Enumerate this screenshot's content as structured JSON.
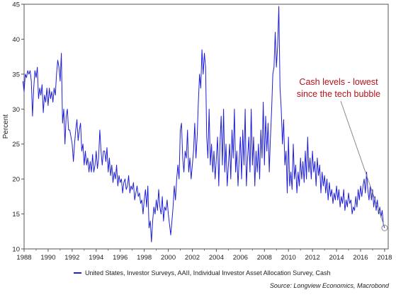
{
  "chart_data": {
    "type": "line",
    "ylabel": "Percent",
    "xlim": [
      1988,
      2018.3
    ],
    "ylim": [
      10,
      45
    ],
    "x_ticks": [
      1988,
      1990,
      1992,
      1994,
      1996,
      1998,
      2000,
      2002,
      2004,
      2006,
      2008,
      2010,
      2012,
      2014,
      2016,
      2018
    ],
    "y_ticks": [
      10,
      15,
      20,
      25,
      30,
      35,
      40,
      45
    ],
    "grid": false,
    "legend_position": "bottom",
    "series": [
      {
        "name": "United States, Investor Surveys, AAII, Individual Investor Asset Allocation Survey, Cash",
        "color": "#1f1fd6",
        "points": [
          [
            1987.9,
            34.0
          ],
          [
            1988.0,
            32.5
          ],
          [
            1988.1,
            35.0
          ],
          [
            1988.2,
            34.5
          ],
          [
            1988.3,
            35.5
          ],
          [
            1988.4,
            35.0
          ],
          [
            1988.5,
            35.5
          ],
          [
            1988.6,
            34.0
          ],
          [
            1988.7,
            29.0
          ],
          [
            1988.8,
            33.0
          ],
          [
            1988.9,
            35.5
          ],
          [
            1989.0,
            34.5
          ],
          [
            1989.1,
            36.0
          ],
          [
            1989.2,
            31.5
          ],
          [
            1989.3,
            33.0
          ],
          [
            1989.4,
            32.0
          ],
          [
            1989.5,
            33.5
          ],
          [
            1989.6,
            29.5
          ],
          [
            1989.7,
            32.0
          ],
          [
            1989.8,
            31.0
          ],
          [
            1989.9,
            33.0
          ],
          [
            1990.0,
            30.5
          ],
          [
            1990.1,
            33.0
          ],
          [
            1990.2,
            31.5
          ],
          [
            1990.3,
            32.5
          ],
          [
            1990.4,
            31.0
          ],
          [
            1990.5,
            33.0
          ],
          [
            1990.6,
            32.0
          ],
          [
            1990.7,
            35.0
          ],
          [
            1990.8,
            37.0
          ],
          [
            1990.9,
            36.0
          ],
          [
            1991.0,
            34.0
          ],
          [
            1991.1,
            38.0
          ],
          [
            1991.2,
            28.0
          ],
          [
            1991.3,
            30.0
          ],
          [
            1991.4,
            25.0
          ],
          [
            1991.5,
            29.0
          ],
          [
            1991.6,
            30.0
          ],
          [
            1991.7,
            27.0
          ],
          [
            1991.8,
            27.0
          ],
          [
            1991.9,
            26.0
          ],
          [
            1992.0,
            25.0
          ],
          [
            1992.1,
            22.5
          ],
          [
            1992.2,
            25.0
          ],
          [
            1992.3,
            27.0
          ],
          [
            1992.4,
            28.5
          ],
          [
            1992.5,
            25.5
          ],
          [
            1992.6,
            27.0
          ],
          [
            1992.7,
            28.0
          ],
          [
            1992.8,
            24.0
          ],
          [
            1992.9,
            25.0
          ],
          [
            1993.0,
            22.0
          ],
          [
            1993.1,
            24.0
          ],
          [
            1993.2,
            22.0
          ],
          [
            1993.3,
            23.0
          ],
          [
            1993.4,
            21.0
          ],
          [
            1993.5,
            22.5
          ],
          [
            1993.6,
            21.0
          ],
          [
            1993.7,
            23.5
          ],
          [
            1993.8,
            21.0
          ],
          [
            1993.9,
            22.0
          ],
          [
            1994.0,
            24.0
          ],
          [
            1994.1,
            21.5
          ],
          [
            1994.2,
            23.0
          ],
          [
            1994.3,
            27.0
          ],
          [
            1994.4,
            24.0
          ],
          [
            1994.5,
            22.0
          ],
          [
            1994.6,
            24.0
          ],
          [
            1994.7,
            24.0
          ],
          [
            1994.8,
            22.5
          ],
          [
            1994.9,
            24.5
          ],
          [
            1995.0,
            21.0
          ],
          [
            1995.1,
            23.0
          ],
          [
            1995.2,
            20.5
          ],
          [
            1995.3,
            22.0
          ],
          [
            1995.4,
            19.5
          ],
          [
            1995.5,
            21.0
          ],
          [
            1995.6,
            20.0
          ],
          [
            1995.7,
            22.0
          ],
          [
            1995.8,
            19.0
          ],
          [
            1995.9,
            20.5
          ],
          [
            1996.0,
            19.5
          ],
          [
            1996.1,
            20.0
          ],
          [
            1996.2,
            18.0
          ],
          [
            1996.3,
            19.5
          ],
          [
            1996.4,
            20.0
          ],
          [
            1996.5,
            18.5
          ],
          [
            1996.6,
            19.0
          ],
          [
            1996.7,
            20.5
          ],
          [
            1996.8,
            18.0
          ],
          [
            1996.9,
            19.0
          ],
          [
            1997.0,
            18.5
          ],
          [
            1997.1,
            19.5
          ],
          [
            1997.2,
            17.0
          ],
          [
            1997.3,
            18.0
          ],
          [
            1997.4,
            19.0
          ],
          [
            1997.5,
            17.5
          ],
          [
            1997.6,
            18.0
          ],
          [
            1997.7,
            16.5
          ],
          [
            1997.8,
            17.0
          ],
          [
            1997.9,
            15.0
          ],
          [
            1998.0,
            17.0
          ],
          [
            1998.1,
            18.5
          ],
          [
            1998.2,
            16.0
          ],
          [
            1998.3,
            19.0
          ],
          [
            1998.4,
            13.0
          ],
          [
            1998.5,
            14.0
          ],
          [
            1998.6,
            11.0
          ],
          [
            1998.7,
            14.0
          ],
          [
            1998.8,
            16.0
          ],
          [
            1998.9,
            15.0
          ],
          [
            1999.0,
            17.0
          ],
          [
            1999.1,
            15.5
          ],
          [
            1999.2,
            18.5
          ],
          [
            1999.3,
            16.0
          ],
          [
            1999.4,
            15.0
          ],
          [
            1999.5,
            17.5
          ],
          [
            1999.6,
            14.0
          ],
          [
            1999.7,
            16.0
          ],
          [
            1999.8,
            15.5
          ],
          [
            1999.9,
            17.0
          ],
          [
            2000.0,
            15.0
          ],
          [
            2000.1,
            13.5
          ],
          [
            2000.2,
            12.0
          ],
          [
            2000.3,
            14.0
          ],
          [
            2000.4,
            16.0
          ],
          [
            2000.5,
            19.0
          ],
          [
            2000.6,
            17.0
          ],
          [
            2000.7,
            20.0
          ],
          [
            2000.8,
            22.0
          ],
          [
            2000.9,
            20.0
          ],
          [
            2001.0,
            27.0
          ],
          [
            2001.1,
            28.0
          ],
          [
            2001.2,
            23.0
          ],
          [
            2001.3,
            21.0
          ],
          [
            2001.4,
            24.0
          ],
          [
            2001.5,
            23.0
          ],
          [
            2001.6,
            27.0
          ],
          [
            2001.7,
            21.0
          ],
          [
            2001.8,
            23.0
          ],
          [
            2001.9,
            20.0
          ],
          [
            2002.0,
            22.0
          ],
          [
            2002.1,
            24.0
          ],
          [
            2002.2,
            28.0
          ],
          [
            2002.3,
            23.0
          ],
          [
            2002.4,
            26.0
          ],
          [
            2002.5,
            31.0
          ],
          [
            2002.6,
            35.0
          ],
          [
            2002.7,
            33.0
          ],
          [
            2002.8,
            38.5
          ],
          [
            2002.9,
            35.0
          ],
          [
            2003.0,
            38.0
          ],
          [
            2003.1,
            36.0
          ],
          [
            2003.2,
            26.0
          ],
          [
            2003.3,
            23.0
          ],
          [
            2003.4,
            30.0
          ],
          [
            2003.5,
            22.0
          ],
          [
            2003.6,
            25.0
          ],
          [
            2003.7,
            21.0
          ],
          [
            2003.8,
            24.0
          ],
          [
            2003.9,
            20.0
          ],
          [
            2004.0,
            23.0
          ],
          [
            2004.1,
            26.0
          ],
          [
            2004.2,
            19.0
          ],
          [
            2004.3,
            25.0
          ],
          [
            2004.4,
            29.0
          ],
          [
            2004.5,
            22.0
          ],
          [
            2004.6,
            30.0
          ],
          [
            2004.7,
            21.0
          ],
          [
            2004.8,
            25.0
          ],
          [
            2004.9,
            19.0
          ],
          [
            2005.0,
            22.0
          ],
          [
            2005.1,
            25.0
          ],
          [
            2005.2,
            20.0
          ],
          [
            2005.3,
            27.0
          ],
          [
            2005.4,
            23.0
          ],
          [
            2005.5,
            30.0
          ],
          [
            2005.6,
            21.0
          ],
          [
            2005.7,
            24.0
          ],
          [
            2005.8,
            19.0
          ],
          [
            2005.9,
            23.0
          ],
          [
            2006.0,
            26.0
          ],
          [
            2006.1,
            20.0
          ],
          [
            2006.2,
            27.0
          ],
          [
            2006.3,
            22.0
          ],
          [
            2006.4,
            30.0
          ],
          [
            2006.5,
            19.0
          ],
          [
            2006.6,
            23.0
          ],
          [
            2006.7,
            26.0
          ],
          [
            2006.8,
            21.0
          ],
          [
            2006.9,
            30.0
          ],
          [
            2007.0,
            22.0
          ],
          [
            2007.1,
            26.0
          ],
          [
            2007.2,
            19.0
          ],
          [
            2007.3,
            24.0
          ],
          [
            2007.4,
            21.0
          ],
          [
            2007.5,
            25.0
          ],
          [
            2007.6,
            20.0
          ],
          [
            2007.7,
            27.0
          ],
          [
            2007.8,
            23.0
          ],
          [
            2007.9,
            31.0
          ],
          [
            2008.0,
            22.0
          ],
          [
            2008.1,
            29.0
          ],
          [
            2008.2,
            24.0
          ],
          [
            2008.3,
            28.0
          ],
          [
            2008.4,
            21.0
          ],
          [
            2008.5,
            26.0
          ],
          [
            2008.6,
            30.0
          ],
          [
            2008.7,
            35.0
          ],
          [
            2008.8,
            36.0
          ],
          [
            2008.9,
            41.0
          ],
          [
            2009.0,
            36.0
          ],
          [
            2009.1,
            39.0
          ],
          [
            2009.2,
            44.7
          ],
          [
            2009.3,
            33.0
          ],
          [
            2009.4,
            30.0
          ],
          [
            2009.5,
            25.0
          ],
          [
            2009.6,
            28.5
          ],
          [
            2009.7,
            22.0
          ],
          [
            2009.8,
            24.0
          ],
          [
            2009.9,
            18.0
          ],
          [
            2010.0,
            26.0
          ],
          [
            2010.1,
            19.0
          ],
          [
            2010.2,
            21.0
          ],
          [
            2010.3,
            18.5
          ],
          [
            2010.4,
            25.0
          ],
          [
            2010.5,
            20.0
          ],
          [
            2010.6,
            22.0
          ],
          [
            2010.7,
            18.0
          ],
          [
            2010.8,
            21.0
          ],
          [
            2010.9,
            19.0
          ],
          [
            2011.0,
            23.0
          ],
          [
            2011.1,
            20.0
          ],
          [
            2011.2,
            22.5
          ],
          [
            2011.3,
            19.5
          ],
          [
            2011.4,
            24.0
          ],
          [
            2011.5,
            20.0
          ],
          [
            2011.6,
            26.0
          ],
          [
            2011.7,
            21.0
          ],
          [
            2011.8,
            23.0
          ],
          [
            2011.9,
            20.0
          ],
          [
            2012.0,
            24.0
          ],
          [
            2012.1,
            21.0
          ],
          [
            2012.2,
            22.5
          ],
          [
            2012.3,
            19.0
          ],
          [
            2012.4,
            23.0
          ],
          [
            2012.5,
            20.5
          ],
          [
            2012.6,
            22.0
          ],
          [
            2012.7,
            18.0
          ],
          [
            2012.8,
            21.0
          ],
          [
            2012.9,
            19.0
          ],
          [
            2013.0,
            20.5
          ],
          [
            2013.1,
            18.0
          ],
          [
            2013.2,
            20.0
          ],
          [
            2013.3,
            17.0
          ],
          [
            2013.4,
            19.5
          ],
          [
            2013.5,
            17.5
          ],
          [
            2013.6,
            18.5
          ],
          [
            2013.7,
            16.5
          ],
          [
            2013.8,
            18.0
          ],
          [
            2013.9,
            17.0
          ],
          [
            2014.0,
            19.0
          ],
          [
            2014.1,
            17.0
          ],
          [
            2014.2,
            18.5
          ],
          [
            2014.3,
            16.0
          ],
          [
            2014.4,
            17.5
          ],
          [
            2014.5,
            16.5
          ],
          [
            2014.6,
            18.5
          ],
          [
            2014.7,
            15.5
          ],
          [
            2014.8,
            17.0
          ],
          [
            2014.9,
            16.0
          ],
          [
            2015.0,
            18.0
          ],
          [
            2015.1,
            16.5
          ],
          [
            2015.2,
            17.0
          ],
          [
            2015.3,
            15.0
          ],
          [
            2015.4,
            16.0
          ],
          [
            2015.5,
            15.5
          ],
          [
            2015.6,
            17.5
          ],
          [
            2015.7,
            16.0
          ],
          [
            2015.8,
            18.5
          ],
          [
            2015.9,
            17.0
          ],
          [
            2016.0,
            19.0
          ],
          [
            2016.1,
            17.5
          ],
          [
            2016.2,
            19.0
          ],
          [
            2016.3,
            20.0
          ],
          [
            2016.4,
            18.0
          ],
          [
            2016.5,
            21.0
          ],
          [
            2016.6,
            18.5
          ],
          [
            2016.7,
            17.0
          ],
          [
            2016.8,
            19.0
          ],
          [
            2016.9,
            17.0
          ],
          [
            2017.0,
            18.5
          ],
          [
            2017.1,
            16.0
          ],
          [
            2017.2,
            17.5
          ],
          [
            2017.3,
            15.5
          ],
          [
            2017.4,
            17.0
          ],
          [
            2017.5,
            15.0
          ],
          [
            2017.6,
            16.0
          ],
          [
            2017.7,
            14.5
          ],
          [
            2017.8,
            15.5
          ],
          [
            2017.9,
            13.5
          ],
          [
            2018.0,
            13.0
          ]
        ]
      }
    ],
    "annotation": {
      "lines": [
        "Cash levels - lowest",
        "since the tech bubble"
      ],
      "target": [
        2018.0,
        13.0
      ],
      "color": "#b5121b"
    },
    "source": "Source: Longview Economics, Macrobond"
  }
}
